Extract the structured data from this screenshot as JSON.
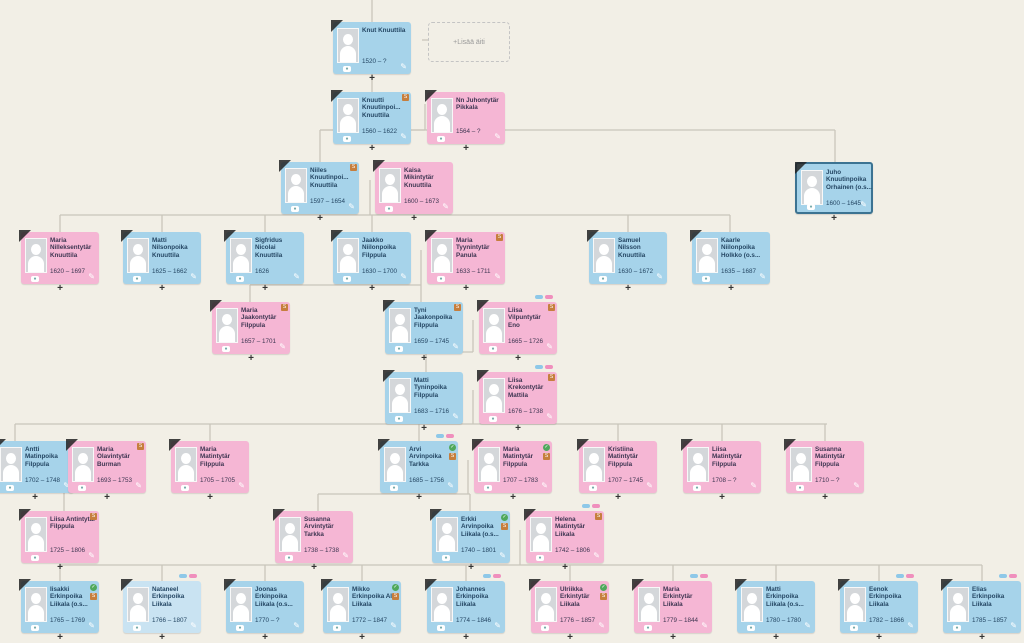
{
  "add_parent_label": "+Lisää äiti",
  "plus_glyph": "+",
  "people": [
    {
      "name": "Knut Knuuttila",
      "dates": "1520 – ?",
      "g": "m"
    },
    {
      "name": "Knuutti Knuutinpoi... Knuuttila",
      "dates": "1560 – 1622",
      "g": "m",
      "src": true
    },
    {
      "name": "Nn Juhontytär Pikkala",
      "dates": "1564 – ?",
      "g": "f"
    },
    {
      "name": "Niiles Knuutinpoi... Knuuttila",
      "dates": "1597 – 1654",
      "g": "m",
      "src": true
    },
    {
      "name": "Kaisa Mikintytär Knuuttila",
      "dates": "1600 – 1673",
      "g": "f"
    },
    {
      "name": "Juho Knuutinpoika Orhainen (o.s...",
      "dates": "1600 – 1645",
      "g": "m",
      "sel": true
    },
    {
      "name": "Maria Nilleksentytär Knuuttila",
      "dates": "1620 – 1697",
      "g": "f"
    },
    {
      "name": "Matti Nilsonpoika Knuuttila",
      "dates": "1625 – 1662",
      "g": "m"
    },
    {
      "name": "Sigfridus Nicolai Knuuttila",
      "dates": "1626",
      "g": "m"
    },
    {
      "name": "Jaakko Niilonpoika Filppula",
      "dates": "1630 – 1700",
      "g": "m"
    },
    {
      "name": "Maria Tyynintytär Panula",
      "dates": "1633 – 1711",
      "g": "f",
      "src": true
    },
    {
      "name": "Samuel Nilsson Knuuttila",
      "dates": "1630 – 1672",
      "g": "m"
    },
    {
      "name": "Kaarle Niilonpoika Holkko (o.s...",
      "dates": "1635 – 1687",
      "g": "m"
    },
    {
      "name": "Maria Jaakontytär Filppula",
      "dates": "1657 – 1701",
      "g": "f",
      "src": true
    },
    {
      "name": "Tyni Jaakonpoika Filppula",
      "dates": "1659 – 1745",
      "g": "m",
      "src": true
    },
    {
      "name": "Liisa Vilpuntytär Eno",
      "dates": "1665 – 1726",
      "g": "f",
      "src": true,
      "pills": true
    },
    {
      "name": "Matti Tyninpoika Filppula",
      "dates": "1683 – 1716",
      "g": "m"
    },
    {
      "name": "Liisa Krekontytär Mattila",
      "dates": "1676 – 1738",
      "g": "f",
      "src": true,
      "pills": true
    },
    {
      "name": "Antti Matinpoika Filppula",
      "dates": "1702 – 1748",
      "g": "m"
    },
    {
      "name": "Maria Olavintytär Burman",
      "dates": "1693 – 1753",
      "g": "f",
      "src": true
    },
    {
      "name": "Maria Matintytär Filppula",
      "dates": "1705 – 1705",
      "g": "f"
    },
    {
      "name": "Arvi Arvinpoika Tarkka",
      "dates": "1685 – 1756",
      "g": "m",
      "grn": true,
      "src": true,
      "pills": true
    },
    {
      "name": "Maria Matintytär Filppula",
      "dates": "1707 – 1783",
      "g": "f",
      "grn": true,
      "src": true
    },
    {
      "name": "Kristiina Matintytär Filppula",
      "dates": "1707 – 1745",
      "g": "f"
    },
    {
      "name": "Liisa Matintytär Filppula",
      "dates": "1708 – ?",
      "g": "f"
    },
    {
      "name": "Susanna Matintytär Filppula",
      "dates": "1710 – ?",
      "g": "f"
    },
    {
      "name": "Liisa Antintytär Filppula",
      "dates": "1725 – 1806",
      "g": "f",
      "src": true
    },
    {
      "name": "Susanna Arvintytär Tarkka",
      "dates": "1738 – 1738",
      "g": "f"
    },
    {
      "name": "Erkki Arvinpoika Liikala (o.s...",
      "dates": "1740 – 1801",
      "g": "m",
      "grn": true,
      "src": true
    },
    {
      "name": "Helena Matintytär Liikala",
      "dates": "1742 – 1806",
      "g": "f",
      "src": true,
      "pills": true
    },
    {
      "name": "Iisakki Erkinpoika Liikala (o.s...",
      "dates": "1765 – 1769",
      "g": "m",
      "grn": true,
      "src": true
    },
    {
      "name": "Nataneel Erkinpoika Liikala",
      "dates": "1766 – 1807",
      "g": "m",
      "light": true,
      "pills": true
    },
    {
      "name": "Joonas Erkinpoika Liikala (o.s...",
      "dates": "1770 – ?",
      "g": "m"
    },
    {
      "name": "Mikko Erkinpoika Ala-Liikala",
      "dates": "1772 – 1847",
      "g": "m",
      "grn": true,
      "src": true
    },
    {
      "name": "Johannes Erkinpoika Liikala",
      "dates": "1774 – 1846",
      "g": "m",
      "pills": true
    },
    {
      "name": "Ulriikka Erkintytär Liikala",
      "dates": "1776 – 1857",
      "g": "f",
      "grn": true,
      "src": true
    },
    {
      "name": "Maria Erkintytär Liikala",
      "dates": "1779 – 1844",
      "g": "f",
      "pills": true
    },
    {
      "name": "Matti Erkinpoika Liikala (o.s...",
      "dates": "1780 – 1780",
      "g": "m"
    },
    {
      "name": "Eenok Erkinpoika Liikala",
      "dates": "1782 – 1866",
      "g": "m",
      "pills": true
    },
    {
      "name": "Elias Erkinpoika Liikala",
      "dates": "1785 – 1857",
      "g": "m",
      "pills": true
    }
  ],
  "colors": {
    "male": "#a6d3ea",
    "female": "#f5b6d4",
    "line": "#c9c5bb",
    "background": "#f2efe6"
  }
}
